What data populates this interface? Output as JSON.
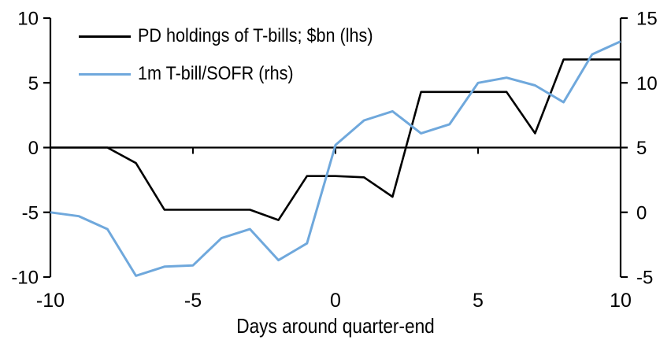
{
  "chart_data": {
    "type": "line",
    "title": "",
    "xlabel": "Days around quarter-end",
    "grid": false,
    "legend_position": "top-left",
    "background_color": "#ffffff",
    "axis_color": "#000000",
    "x": [
      -10,
      -9,
      -8,
      -7,
      -6,
      -5,
      -4,
      -3,
      -2,
      -1,
      0,
      1,
      2,
      3,
      4,
      5,
      6,
      7,
      8,
      9,
      10
    ],
    "series": [
      {
        "name": "PD holdings of T-bills; $bn (lhs)",
        "axis": "lhs",
        "color": "#000000",
        "values": [
          0.0,
          0.0,
          0.0,
          -1.2,
          -4.8,
          -4.8,
          -4.8,
          -4.8,
          -5.6,
          -2.2,
          -2.2,
          -2.3,
          -3.8,
          4.3,
          4.3,
          4.3,
          4.3,
          1.1,
          6.8,
          6.8,
          6.8
        ]
      },
      {
        "name": "1m T-bill/SOFR (rhs)",
        "axis": "rhs",
        "color": "#6FA8DC",
        "values": [
          0.0,
          -0.3,
          -1.3,
          -4.9,
          -4.2,
          -4.1,
          -2.0,
          -1.3,
          -3.7,
          -2.4,
          5.2,
          7.1,
          7.8,
          6.1,
          6.8,
          10.0,
          10.4,
          9.8,
          8.5,
          12.2,
          13.2
        ]
      }
    ],
    "left_axis": {
      "min": -10,
      "max": 10,
      "ticks": [
        -10,
        -5,
        0,
        5,
        10
      ]
    },
    "right_axis": {
      "min": -5,
      "max": 15,
      "ticks": [
        -5,
        0,
        5,
        10,
        15
      ]
    },
    "x_axis": {
      "ticks": [
        -10,
        -5,
        0,
        5,
        10
      ],
      "zero_line": true
    }
  }
}
